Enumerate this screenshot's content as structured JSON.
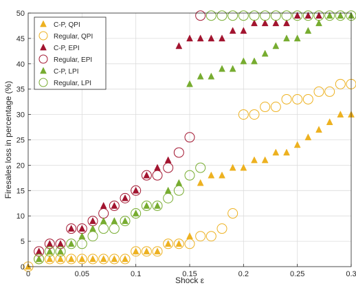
{
  "chart_data": {
    "type": "scatter",
    "title": "",
    "xlabel": "Shock ε",
    "ylabel": "Firesales loss in percentage (%)",
    "xlim": [
      0,
      0.3
    ],
    "ylim": [
      0,
      50
    ],
    "xticks": [
      0,
      0.05,
      0.1,
      0.15,
      0.2,
      0.25,
      0.3
    ],
    "xtick_labels": [
      "0",
      "0.05",
      "0.1",
      "0.15",
      "0.2",
      "0.25",
      "0.3"
    ],
    "yticks": [
      0,
      5,
      10,
      15,
      20,
      25,
      30,
      35,
      40,
      45,
      50
    ],
    "ytick_labels": [
      "0",
      "5",
      "10",
      "15",
      "20",
      "25",
      "30",
      "35",
      "40",
      "45",
      "50"
    ],
    "grid": true,
    "legend_position": "top-left",
    "series": [
      {
        "name": "C-P, QPI",
        "marker": "triangle",
        "color": "#EDB120",
        "x": [
          0,
          0.01,
          0.02,
          0.03,
          0.04,
          0.05,
          0.06,
          0.07,
          0.08,
          0.09,
          0.1,
          0.11,
          0.12,
          0.13,
          0.14,
          0.15,
          0.16,
          0.17,
          0.18,
          0.19,
          0.2,
          0.21,
          0.22,
          0.23,
          0.24,
          0.25,
          0.26,
          0.27,
          0.28,
          0.29,
          0.3
        ],
        "y": [
          0,
          1.5,
          1.5,
          1.5,
          1.5,
          1.5,
          1.5,
          1.5,
          1.5,
          1.5,
          3,
          3,
          3,
          4.5,
          4.5,
          6,
          16.5,
          18,
          18,
          19.5,
          19.5,
          21,
          21,
          22.5,
          22.5,
          24,
          25.5,
          27,
          28.5,
          30,
          30
        ]
      },
      {
        "name": "Regular, QPI",
        "marker": "circle",
        "color": "#EDB120",
        "x": [
          0,
          0.01,
          0.02,
          0.03,
          0.04,
          0.05,
          0.06,
          0.07,
          0.08,
          0.09,
          0.1,
          0.11,
          0.12,
          0.13,
          0.14,
          0.15,
          0.16,
          0.17,
          0.18,
          0.19,
          0.2,
          0.21,
          0.22,
          0.23,
          0.24,
          0.25,
          0.26,
          0.27,
          0.28,
          0.29,
          0.3
        ],
        "y": [
          0,
          1.5,
          1.5,
          1.5,
          1.5,
          1.5,
          1.5,
          1.5,
          1.5,
          1.5,
          3,
          3,
          3,
          4.5,
          4.5,
          4.5,
          6,
          6,
          7.5,
          10.5,
          30,
          30,
          31.5,
          31.5,
          33,
          33,
          33,
          34.5,
          34.5,
          36,
          36
        ]
      },
      {
        "name": "C-P, EPI",
        "marker": "triangle",
        "color": "#A2142F",
        "x": [
          0.01,
          0.02,
          0.03,
          0.04,
          0.05,
          0.06,
          0.07,
          0.08,
          0.09,
          0.1,
          0.11,
          0.12,
          0.13,
          0.14,
          0.15,
          0.16,
          0.17,
          0.18,
          0.19,
          0.2,
          0.21,
          0.22,
          0.23,
          0.24,
          0.25,
          0.26,
          0.27
        ],
        "y": [
          3,
          4.5,
          4.5,
          7.5,
          7.5,
          9,
          12,
          12,
          13.5,
          15,
          18,
          19.5,
          21,
          43.5,
          45,
          45,
          45,
          45,
          46.5,
          46.5,
          48,
          48,
          48,
          48,
          49.5,
          49.5,
          49.5
        ]
      },
      {
        "name": "Regular, EPI",
        "marker": "circle",
        "color": "#A2142F",
        "x": [
          0.01,
          0.02,
          0.03,
          0.04,
          0.05,
          0.06,
          0.07,
          0.08,
          0.09,
          0.1,
          0.11,
          0.12,
          0.13,
          0.14,
          0.15,
          0.16
        ],
        "y": [
          3,
          4.5,
          4.5,
          7.5,
          7.5,
          9,
          10.5,
          12,
          13.5,
          15,
          18,
          18,
          19.5,
          22.5,
          25.5,
          49.5
        ]
      },
      {
        "name": "C-P, LPI",
        "marker": "triangle",
        "color": "#77AC30",
        "x": [
          0.01,
          0.02,
          0.03,
          0.04,
          0.05,
          0.06,
          0.07,
          0.08,
          0.09,
          0.1,
          0.11,
          0.12,
          0.13,
          0.14,
          0.15,
          0.16,
          0.17,
          0.18,
          0.19,
          0.2,
          0.21,
          0.22,
          0.23,
          0.24,
          0.25,
          0.26,
          0.27,
          0.28,
          0.29,
          0.3
        ],
        "y": [
          1.5,
          3,
          3,
          4.5,
          6,
          7.5,
          9,
          9,
          9,
          10.5,
          12,
          12,
          15,
          16.5,
          36,
          37.5,
          37.5,
          39,
          39,
          40.5,
          40.5,
          42,
          43.5,
          45,
          45,
          46.5,
          48,
          49.5,
          49.5,
          49.5
        ]
      },
      {
        "name": "Regular, LPI",
        "marker": "circle",
        "color": "#77AC30",
        "x": [
          0.01,
          0.02,
          0.03,
          0.04,
          0.05,
          0.06,
          0.07,
          0.08,
          0.09,
          0.1,
          0.11,
          0.12,
          0.13,
          0.14,
          0.15,
          0.16,
          0.17,
          0.18,
          0.19,
          0.2,
          0.21,
          0.22,
          0.23,
          0.24,
          0.25,
          0.26,
          0.27,
          0.28,
          0.29,
          0.3
        ],
        "y": [
          1.5,
          3,
          3,
          4.5,
          4.5,
          6,
          7.5,
          7.5,
          9,
          10.5,
          12,
          12,
          13.5,
          15,
          18,
          19.5,
          49.5,
          49.5,
          49.5,
          49.5,
          49.5,
          49.5,
          49.5,
          49.5,
          49.5,
          49.5,
          49.5,
          49.5,
          49.5,
          49.5
        ]
      }
    ]
  }
}
